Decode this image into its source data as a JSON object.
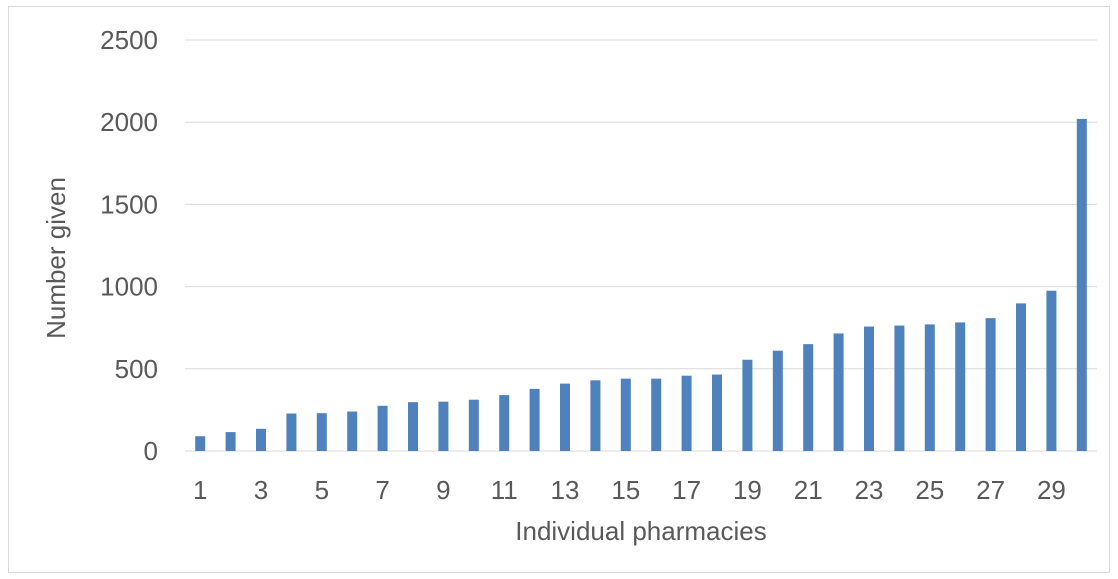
{
  "chart_data": {
    "type": "bar",
    "title": "",
    "xlabel": "Individual pharmacies",
    "ylabel": "Number given",
    "ylim": [
      0,
      2500
    ],
    "yticks": [
      0,
      500,
      1000,
      1500,
      2000,
      2500
    ],
    "grid": true,
    "legend": "none",
    "bar_color": "#4f81bd",
    "categories": [
      "1",
      "2",
      "3",
      "4",
      "5",
      "6",
      "7",
      "8",
      "9",
      "10",
      "11",
      "12",
      "13",
      "14",
      "15",
      "16",
      "17",
      "18",
      "19",
      "20",
      "21",
      "22",
      "23",
      "24",
      "25",
      "26",
      "27",
      "28",
      "29",
      "30"
    ],
    "visible_tick_labels": [
      "1",
      "3",
      "5",
      "7",
      "9",
      "11",
      "13",
      "15",
      "17",
      "19",
      "21",
      "23",
      "25",
      "27",
      "29"
    ],
    "values": [
      90,
      115,
      135,
      228,
      230,
      240,
      275,
      297,
      300,
      312,
      340,
      378,
      410,
      430,
      440,
      440,
      458,
      465,
      555,
      610,
      650,
      715,
      757,
      763,
      770,
      782,
      808,
      898,
      975,
      2020
    ]
  }
}
